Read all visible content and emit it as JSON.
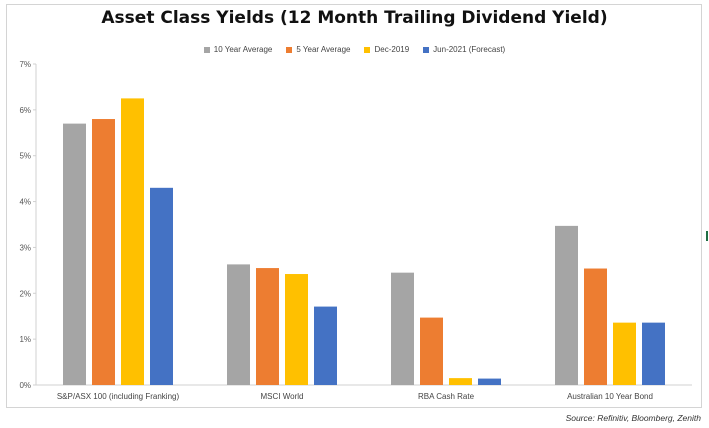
{
  "chart_data": {
    "type": "bar",
    "title": "Asset Class Yields (12 Month Trailing Dividend Yield)",
    "categories": [
      "S&P/ASX 100 (including Franking)",
      "MSCI World",
      "RBA Cash Rate",
      "Australian 10 Year Bond"
    ],
    "series": [
      {
        "name": "10 Year Average",
        "color": "#a5a5a5",
        "values": [
          5.7,
          2.63,
          2.45,
          3.47
        ]
      },
      {
        "name": "5 Year Average",
        "color": "#ed7d31",
        "values": [
          5.8,
          2.55,
          1.47,
          2.54
        ]
      },
      {
        "name": "Dec-2019",
        "color": "#ffc000",
        "values": [
          6.25,
          2.42,
          0.15,
          1.36
        ]
      },
      {
        "name": "Jun-2021 (Forecast)",
        "color": "#4472c4",
        "values": [
          4.3,
          1.71,
          0.14,
          1.36
        ]
      }
    ],
    "ylim": [
      0,
      7
    ],
    "yticks": [
      "0%",
      "1%",
      "2%",
      "3%",
      "4%",
      "5%",
      "6%",
      "7%"
    ],
    "grid": false,
    "legend_position": "top-center",
    "source": "Source: Refinitiv, Bloomberg, Zenith"
  }
}
